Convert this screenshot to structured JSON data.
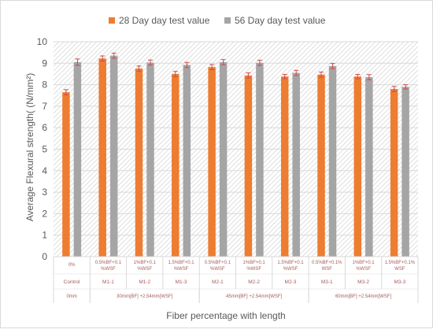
{
  "chart_data": {
    "type": "bar",
    "title": "",
    "ylabel": "Average Flexural strength( (N/mm²)",
    "xlabel": "Fiber percentage with length",
    "ylim": [
      0,
      10
    ],
    "yticks": [
      0,
      1,
      2,
      3,
      4,
      5,
      6,
      7,
      8,
      9,
      10
    ],
    "grid": true,
    "legend_position": "top",
    "categories": [
      "Control",
      "M1-1",
      "M1-2",
      "M1-3",
      "M2-1",
      "M2-2",
      "M2-3",
      "M3-1",
      "M3-2",
      "M3-3"
    ],
    "fiber_labels": [
      [
        "0%"
      ],
      [
        "0.5%BF+0.1",
        "%WSF"
      ],
      [
        "1%BF+0.1",
        "%WSF"
      ],
      [
        "1.5%BF+0.1",
        "%WSF"
      ],
      [
        "0.5%BF+0.1",
        "%WSF"
      ],
      [
        "1%BF+0.1",
        "%WSF"
      ],
      [
        "1.5%BF+0.1",
        "%WSF"
      ],
      [
        "0.5%BF+0.1%",
        "WSF"
      ],
      [
        "1%BF+0.1",
        "%WSF"
      ],
      [
        "1.5%BF+0.1%",
        "WSF"
      ]
    ],
    "groups": [
      {
        "label": "0mm",
        "start": 0,
        "end": 0
      },
      {
        "label": "30mm[BF] +2.54mm[WSF]",
        "start": 1,
        "end": 3
      },
      {
        "label": "45mm[BF] +2.54mm[WSF]",
        "start": 4,
        "end": 6
      },
      {
        "label": "60mm[BF] +2.54mm[WSF]",
        "start": 7,
        "end": 9
      }
    ],
    "series": [
      {
        "name": "28 Day day test value",
        "color": "#ed7d31",
        "values": [
          7.65,
          9.22,
          8.75,
          8.5,
          8.82,
          8.43,
          8.38,
          8.47,
          8.38,
          7.8
        ],
        "errors": [
          0.12,
          0.12,
          0.12,
          0.12,
          0.12,
          0.12,
          0.1,
          0.12,
          0.1,
          0.12
        ]
      },
      {
        "name": "56 Day day test value",
        "color": "#a5a5a5",
        "values": [
          9.05,
          9.35,
          9.03,
          8.92,
          9.05,
          9.02,
          8.55,
          8.87,
          8.35,
          7.9
        ],
        "errors": [
          0.15,
          0.12,
          0.12,
          0.12,
          0.12,
          0.12,
          0.12,
          0.12,
          0.12,
          0.1
        ]
      }
    ]
  }
}
